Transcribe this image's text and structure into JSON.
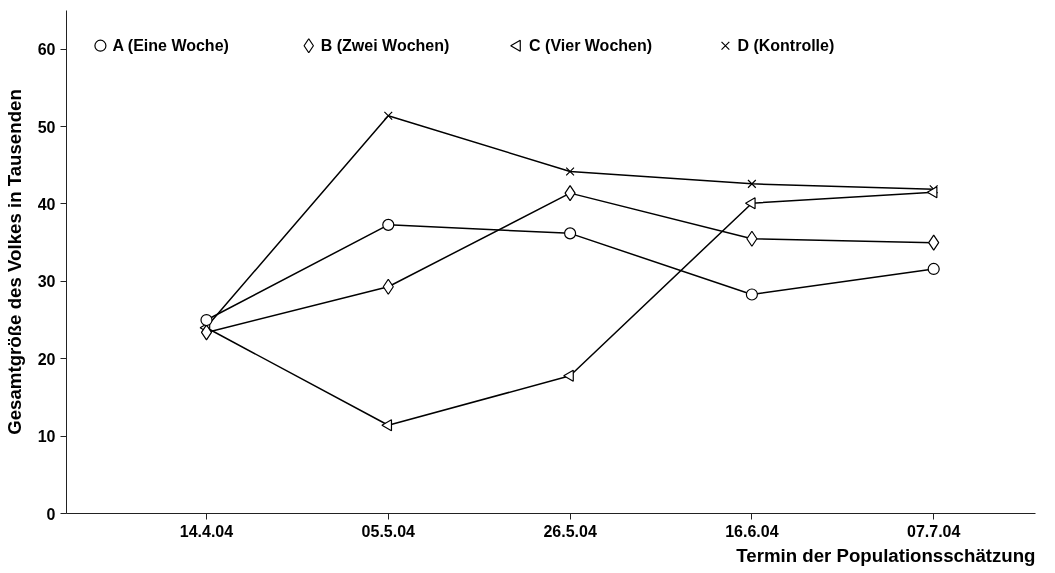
{
  "chart_data": {
    "type": "line",
    "xlabel": "Termin der Populationsschätzung",
    "ylabel": "Gesamtgröße des Volkes in Tausenden",
    "categories": [
      "14.4.04",
      "05.5.04",
      "26.5.04",
      "16.6.04",
      "07.7.04"
    ],
    "ylim": [
      0,
      65
    ],
    "yticks": [
      0,
      10,
      20,
      30,
      40,
      50,
      60
    ],
    "grid": false,
    "legend": "top",
    "line_style": "solid",
    "series": [
      {
        "name": "A (Eine Woche)",
        "color": "#000000",
        "marker": "circle",
        "values": [
          25.0,
          37.3,
          36.2,
          28.3,
          31.6
        ]
      },
      {
        "name": "B (Zwei Wochen)",
        "color": "#000000",
        "marker": "diamond",
        "values": [
          23.4,
          29.3,
          41.4,
          35.5,
          35.0
        ]
      },
      {
        "name": "C (Vier Wochen)",
        "color": "#000000",
        "marker": "triangle",
        "values": [
          24.0,
          11.4,
          17.8,
          40.1,
          41.5
        ]
      },
      {
        "name": "D (Kontrolle)",
        "color": "#000000",
        "marker": "cross",
        "values": [
          24.1,
          51.4,
          44.2,
          42.6,
          41.9
        ]
      }
    ]
  }
}
